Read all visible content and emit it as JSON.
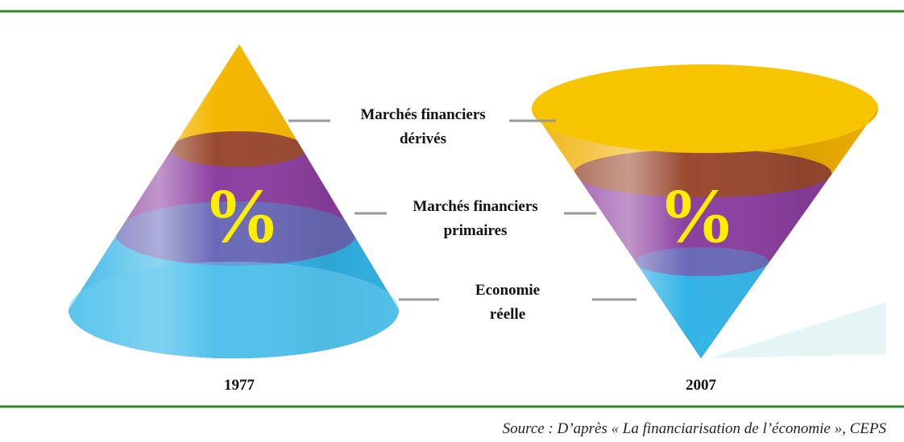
{
  "cones": [
    {
      "symbol": "%",
      "year": "1977"
    },
    {
      "symbol": "%",
      "year": "2007"
    }
  ],
  "layers": [
    {
      "label_lines": [
        "Marchés financiers",
        "dérivés"
      ]
    },
    {
      "label_lines": [
        "Marchés financiers",
        "primaires"
      ]
    },
    {
      "label_lines": [
        "Economie",
        "réelle"
      ]
    }
  ],
  "source": "Source : D’après « La financiarisation de l’économie », CEPS"
}
